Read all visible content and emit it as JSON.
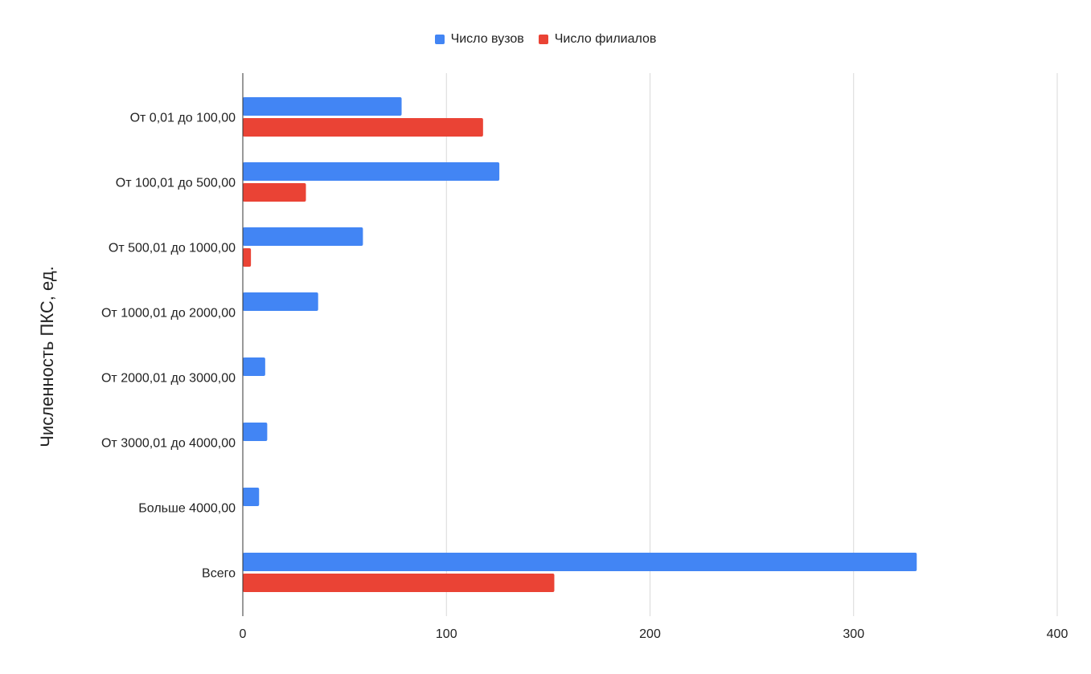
{
  "chart_data": {
    "type": "bar",
    "orientation": "horizontal",
    "categories": [
      "От 0,01 до 100,00",
      "От 100,01 до 500,00",
      "От 500,01 до 1000,00",
      "От 1000,01 до 2000,00",
      "От 2000,01 до 3000,00",
      "От 3000,01 до 4000,00",
      "Больше 4000,00",
      "Всего"
    ],
    "series": [
      {
        "name": "Число вузов",
        "color": "#4285f4",
        "values": [
          78,
          126,
          59,
          37,
          11,
          12,
          8,
          331
        ]
      },
      {
        "name": "Число филиалов",
        "color": "#ea4335",
        "values": [
          118,
          31,
          4,
          0,
          0,
          0,
          0,
          153
        ]
      }
    ],
    "ylabel": "Численность ПКС, ед.",
    "xlabel": "",
    "xlim": [
      0,
      400
    ],
    "xticks": [
      "0",
      "100",
      "200",
      "300",
      "400"
    ],
    "grid": true,
    "legend_position": "top-center"
  }
}
